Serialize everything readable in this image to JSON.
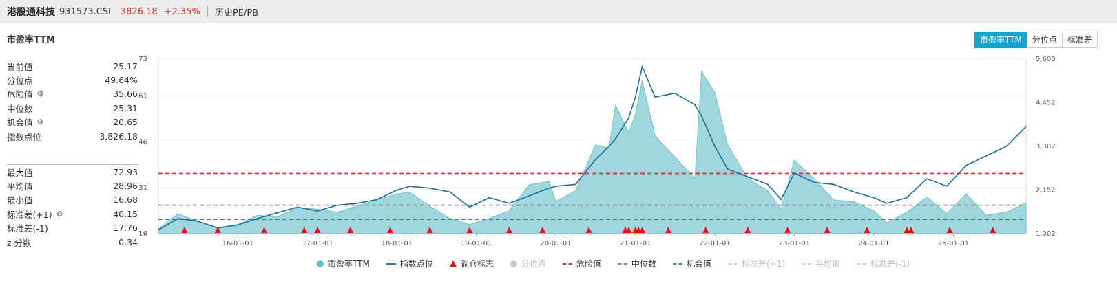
{
  "header": {
    "name": "港股通科技",
    "code": "931573.CSI",
    "price": "3826.18",
    "change": "+2.35%",
    "history_link": "历史PE/PB"
  },
  "chart_title": "市盈率TTM",
  "tabs": [
    "市盈率TTM",
    "分位点",
    "标准差"
  ],
  "stats_top": [
    {
      "label": "当前值",
      "value": "25.17",
      "gear": false
    },
    {
      "label": "分位点",
      "value": "49.64%",
      "gear": false
    },
    {
      "label": "危险值",
      "value": "35.66",
      "gear": true
    },
    {
      "label": "中位数",
      "value": "25.31",
      "gear": false
    },
    {
      "label": "机会值",
      "value": "20.65",
      "gear": true
    },
    {
      "label": "指数点位",
      "value": "3,826.18",
      "gear": false
    }
  ],
  "stats_bottom": [
    {
      "label": "最大值",
      "value": "72.93",
      "gear": false
    },
    {
      "label": "平均值",
      "value": "28.96",
      "gear": false
    },
    {
      "label": "最小值",
      "value": "16.68",
      "gear": false
    },
    {
      "label": "标准差(+1)",
      "value": "40.15",
      "gear": true
    },
    {
      "label": "标准差(-1)",
      "value": "17.76",
      "gear": false
    },
    {
      "label": "z 分数",
      "value": "-0.34",
      "gear": false
    }
  ],
  "legend": [
    {
      "label": "市盈率TTM",
      "sym": "dot",
      "color": "#5bbfcf",
      "dim": false
    },
    {
      "label": "指数点位",
      "sym": "line",
      "color": "#1f6e94",
      "dim": false
    },
    {
      "label": "调仓标志",
      "sym": "tri",
      "color": "#e3130f",
      "dim": false
    },
    {
      "label": "分位点",
      "sym": "dot",
      "color": "#c8c8c8",
      "dim": true
    },
    {
      "label": "危险值",
      "sym": "dash",
      "color": "#d32f2f",
      "dim": false
    },
    {
      "label": "中位数",
      "sym": "dash",
      "color": "#888888",
      "dim": false
    },
    {
      "label": "机会值",
      "sym": "dash",
      "color": "#2e9d5c",
      "dim": false
    },
    {
      "label": "标准差(+1)",
      "sym": "dash",
      "color": "#cccccc",
      "dim": true
    },
    {
      "label": "平均值",
      "sym": "dash",
      "color": "#cccccc",
      "dim": true
    },
    {
      "label": "标准差(-1)",
      "sym": "dash",
      "color": "#cccccc",
      "dim": true
    }
  ],
  "chart_data": {
    "type": "area",
    "title": "市盈率TTM",
    "x_start": "2015-01-01",
    "x_end": "2025-12-01",
    "xticks": [
      "16-01-01",
      "17-01-01",
      "18-01-01",
      "19-01-01",
      "20-01-01",
      "21-01-01",
      "22-01-01",
      "23-01-01",
      "24-01-01",
      "25-01-01"
    ],
    "y_left": {
      "ticks": [
        "16",
        "31",
        "46",
        "61",
        "73"
      ],
      "range": [
        16,
        73
      ]
    },
    "y_right": {
      "ticks": [
        "1,002",
        "2,152",
        "3,302",
        "4,452",
        "5,600"
      ],
      "range": [
        1002,
        5600
      ]
    },
    "reference_lines": {
      "danger": 35.66,
      "median": 25.31,
      "opportunity": 20.65
    },
    "series": [
      {
        "name": "市盈率TTM",
        "axis": "left",
        "points": [
          [
            "2015-01-01",
            17.5
          ],
          [
            "2015-04-01",
            22.5
          ],
          [
            "2015-07-01",
            20.0
          ],
          [
            "2015-10-01",
            18.0
          ],
          [
            "2016-01-01",
            19.0
          ],
          [
            "2016-04-01",
            22.0
          ],
          [
            "2016-07-01",
            21.5
          ],
          [
            "2016-10-01",
            24.5
          ],
          [
            "2017-01-01",
            24.0
          ],
          [
            "2017-04-01",
            23.0
          ],
          [
            "2017-07-01",
            25.0
          ],
          [
            "2017-10-01",
            27.0
          ],
          [
            "2018-01-01",
            29.0
          ],
          [
            "2018-03-01",
            29.5
          ],
          [
            "2018-06-01",
            25.0
          ],
          [
            "2018-09-01",
            21.0
          ],
          [
            "2018-12-01",
            19.0
          ],
          [
            "2019-03-01",
            21.0
          ],
          [
            "2019-06-01",
            23.5
          ],
          [
            "2019-09-01",
            32.0
          ],
          [
            "2019-12-01",
            33.0
          ],
          [
            "2020-01-01",
            26.5
          ],
          [
            "2020-04-01",
            30.0
          ],
          [
            "2020-07-01",
            45.0
          ],
          [
            "2020-09-01",
            44.0
          ],
          [
            "2020-10-01",
            58.0
          ],
          [
            "2020-12-01",
            49.0
          ],
          [
            "2021-01-01",
            55.0
          ],
          [
            "2021-02-01",
            66.0
          ],
          [
            "2021-04-01",
            48.0
          ],
          [
            "2021-07-01",
            41.0
          ],
          [
            "2021-10-01",
            34.0
          ],
          [
            "2021-11-01",
            69.0
          ],
          [
            "2022-01-01",
            62.0
          ],
          [
            "2022-03-01",
            45.0
          ],
          [
            "2022-06-01",
            34.0
          ],
          [
            "2022-09-01",
            30.0
          ],
          [
            "2022-11-01",
            24.0
          ],
          [
            "2023-01-01",
            40.0
          ],
          [
            "2023-04-01",
            34.0
          ],
          [
            "2023-07-01",
            27.0
          ],
          [
            "2023-10-01",
            26.5
          ],
          [
            "2024-01-01",
            23.5
          ],
          [
            "2024-03-01",
            19.5
          ],
          [
            "2024-06-01",
            23.0
          ],
          [
            "2024-09-01",
            28.0
          ],
          [
            "2024-12-01",
            22.5
          ],
          [
            "2025-03-01",
            29.0
          ],
          [
            "2025-06-01",
            22.0
          ],
          [
            "2025-09-01",
            23.0
          ],
          [
            "2025-12-01",
            26.0
          ]
        ]
      },
      {
        "name": "指数点位",
        "axis": "right",
        "points": [
          [
            "2015-01-01",
            1100
          ],
          [
            "2015-04-01",
            1400
          ],
          [
            "2015-07-01",
            1330
          ],
          [
            "2015-10-01",
            1150
          ],
          [
            "2016-01-01",
            1230
          ],
          [
            "2016-04-01",
            1400
          ],
          [
            "2016-07-01",
            1550
          ],
          [
            "2016-10-01",
            1700
          ],
          [
            "2017-01-01",
            1600
          ],
          [
            "2017-04-01",
            1750
          ],
          [
            "2017-07-01",
            1800
          ],
          [
            "2017-10-01",
            1900
          ],
          [
            "2018-01-01",
            2150
          ],
          [
            "2018-03-01",
            2250
          ],
          [
            "2018-06-01",
            2200
          ],
          [
            "2018-09-01",
            2100
          ],
          [
            "2018-12-01",
            1700
          ],
          [
            "2019-03-01",
            1950
          ],
          [
            "2019-06-01",
            1800
          ],
          [
            "2019-09-01",
            2000
          ],
          [
            "2019-12-01",
            2200
          ],
          [
            "2020-01-01",
            2250
          ],
          [
            "2020-04-01",
            2300
          ],
          [
            "2020-07-01",
            2950
          ],
          [
            "2020-09-01",
            3300
          ],
          [
            "2020-10-01",
            3500
          ],
          [
            "2020-12-01",
            4050
          ],
          [
            "2021-01-01",
            4600
          ],
          [
            "2021-02-01",
            5400
          ],
          [
            "2021-04-01",
            4600
          ],
          [
            "2021-07-01",
            4700
          ],
          [
            "2021-10-01",
            4400
          ],
          [
            "2021-11-01",
            4100
          ],
          [
            "2022-01-01",
            3300
          ],
          [
            "2022-03-01",
            2700
          ],
          [
            "2022-06-01",
            2500
          ],
          [
            "2022-09-01",
            2300
          ],
          [
            "2022-11-01",
            1900
          ],
          [
            "2023-01-01",
            2600
          ],
          [
            "2023-04-01",
            2350
          ],
          [
            "2023-07-01",
            2300
          ],
          [
            "2023-10-01",
            2100
          ],
          [
            "2024-01-01",
            1950
          ],
          [
            "2024-03-01",
            1800
          ],
          [
            "2024-06-01",
            1950
          ],
          [
            "2024-09-01",
            2450
          ],
          [
            "2024-12-01",
            2250
          ],
          [
            "2025-03-01",
            2800
          ],
          [
            "2025-06-01",
            3050
          ],
          [
            "2025-09-01",
            3300
          ],
          [
            "2025-12-01",
            3826
          ]
        ]
      }
    ],
    "rebalance_markers": [
      "2015-05-01",
      "2015-10-01",
      "2016-05-01",
      "2016-11-01",
      "2017-01-01",
      "2017-06-01",
      "2017-12-01",
      "2018-06-01",
      "2018-12-01",
      "2019-06-01",
      "2019-11-01",
      "2020-06-01",
      "2020-11-15",
      "2020-12-01",
      "2021-01-01",
      "2021-01-15",
      "2021-02-01",
      "2021-06-01",
      "2021-11-20",
      "2022-06-01",
      "2022-12-01",
      "2023-06-01",
      "2023-12-01",
      "2024-06-01",
      "2024-06-20",
      "2024-12-15",
      "2025-07-01"
    ]
  }
}
